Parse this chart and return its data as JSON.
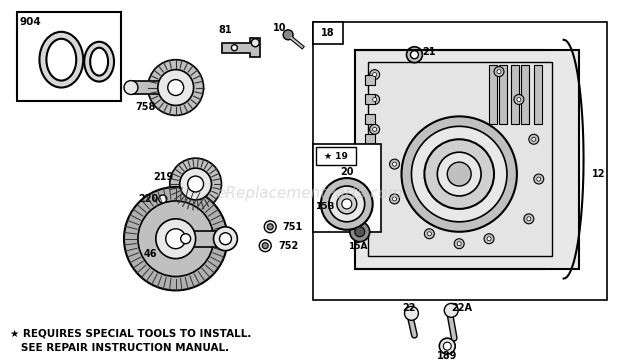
{
  "bg_color": "#ffffff",
  "watermark": "eReplacementParts.com",
  "watermark_color": "#c8c8c8",
  "footer_line1": "★ REQUIRES SPECIAL TOOLS TO INSTALL.",
  "footer_line2": "   SEE REPAIR INSTRUCTION MANUAL.",
  "line_color": "#000000",
  "gray_light": "#e8e8e8",
  "gray_mid": "#c0c0c0",
  "gray_dark": "#888888"
}
